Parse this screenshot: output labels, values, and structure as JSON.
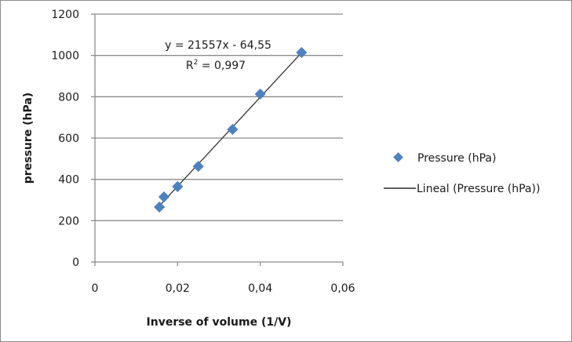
{
  "chart_data": {
    "type": "scatter",
    "title": "",
    "xlabel": "Inverse of volume (1/V)",
    "ylabel": "pressure (hPa)",
    "xlim": [
      0,
      0.06
    ],
    "ylim": [
      0,
      1200
    ],
    "x_ticks": [
      "0",
      "0,02",
      "0,04",
      "0,06"
    ],
    "y_ticks": [
      "0",
      "200",
      "400",
      "600",
      "800",
      "1000",
      "1200"
    ],
    "grid": {
      "horizontal": true,
      "vertical": false
    },
    "legend_position": "right",
    "series": [
      {
        "name": "Pressure (hPa)",
        "marker": "diamond",
        "color": "#4f81bd",
        "x": [
          0.0156,
          0.0167,
          0.02,
          0.025,
          0.0333,
          0.04,
          0.05
        ],
        "y": [
          266,
          315,
          365,
          463,
          642,
          813,
          1014
        ]
      },
      {
        "name": "Lineal (Pressure (hPa))",
        "type": "trendline",
        "color": "#000000",
        "slope": 21557,
        "intercept": -64.55,
        "r_squared": 0.997,
        "x_range": [
          0.0156,
          0.05
        ]
      }
    ],
    "annotations": {
      "equation": "y = 21557x - 64,55",
      "r_squared_label": "R² = 0,997"
    }
  },
  "legend": {
    "items": [
      {
        "label": "Pressure (hPa)"
      },
      {
        "label": "Lineal (Pressure (hPa))"
      }
    ]
  },
  "axes": {
    "x_title": "Inverse of volume (1/V)",
    "y_title": "pressure (hPa)"
  },
  "annotation": {
    "equation": "y = 21557x - 64,55",
    "r2_prefix": "R",
    "r2_sup": "2",
    "r2_value": " = 0,997"
  }
}
